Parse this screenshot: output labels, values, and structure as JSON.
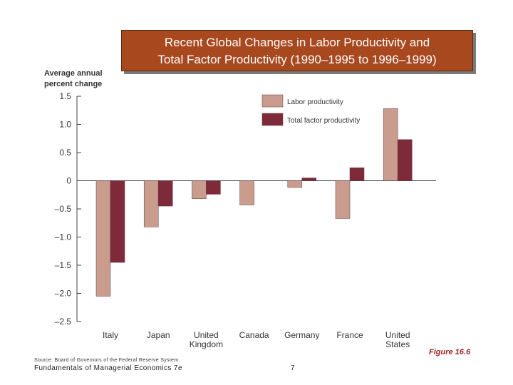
{
  "slide": {
    "title_line1": "Recent Global Changes in Labor Productivity and",
    "title_line2": "Total Factor Productivity (1990–1995 to 1996–1999)",
    "source": "Source: Board of Governors of the Federal Reserve System.",
    "footer": "Fundamentals of Managerial Economics 7e",
    "page_number": "7",
    "figure_label": "Figure 16.6"
  },
  "colors": {
    "labor": "#c99c8e",
    "tfp": "#7e2a3b",
    "axis": "#444444",
    "title_bg": "#a8481f"
  },
  "chart_data": {
    "type": "bar",
    "title": "Recent Global Changes in Labor Productivity and Total Factor Productivity (1990–1995 to 1996–1999)",
    "ylabel_line1": "Average annual",
    "ylabel_line2": "percent change",
    "xlabel": "",
    "ylim": [
      -2.5,
      1.5
    ],
    "yticks": [
      1.5,
      1.0,
      0.5,
      0,
      -0.5,
      -1.0,
      -1.5,
      -2.0,
      -2.5
    ],
    "ytick_labels": [
      "1.5",
      "1.0",
      "0.5",
      "0",
      "–0.5",
      "–1.0",
      "–1.5",
      "–2.0",
      "–2.5"
    ],
    "categories": [
      [
        "Italy"
      ],
      [
        "Japan"
      ],
      [
        "United",
        "Kingdom"
      ],
      [
        "Canada"
      ],
      [
        "Germany"
      ],
      [
        "France"
      ],
      [
        "United",
        "States"
      ]
    ],
    "series": [
      {
        "name": "Labor productivity",
        "values": [
          -2.05,
          -0.82,
          -0.32,
          -0.43,
          -0.12,
          -0.67,
          1.28
        ]
      },
      {
        "name": "Total factor productivity",
        "values": [
          -1.45,
          -0.45,
          -0.24,
          null,
          0.05,
          0.23,
          0.73
        ]
      }
    ],
    "legend_position": "top-right",
    "grid": false
  }
}
